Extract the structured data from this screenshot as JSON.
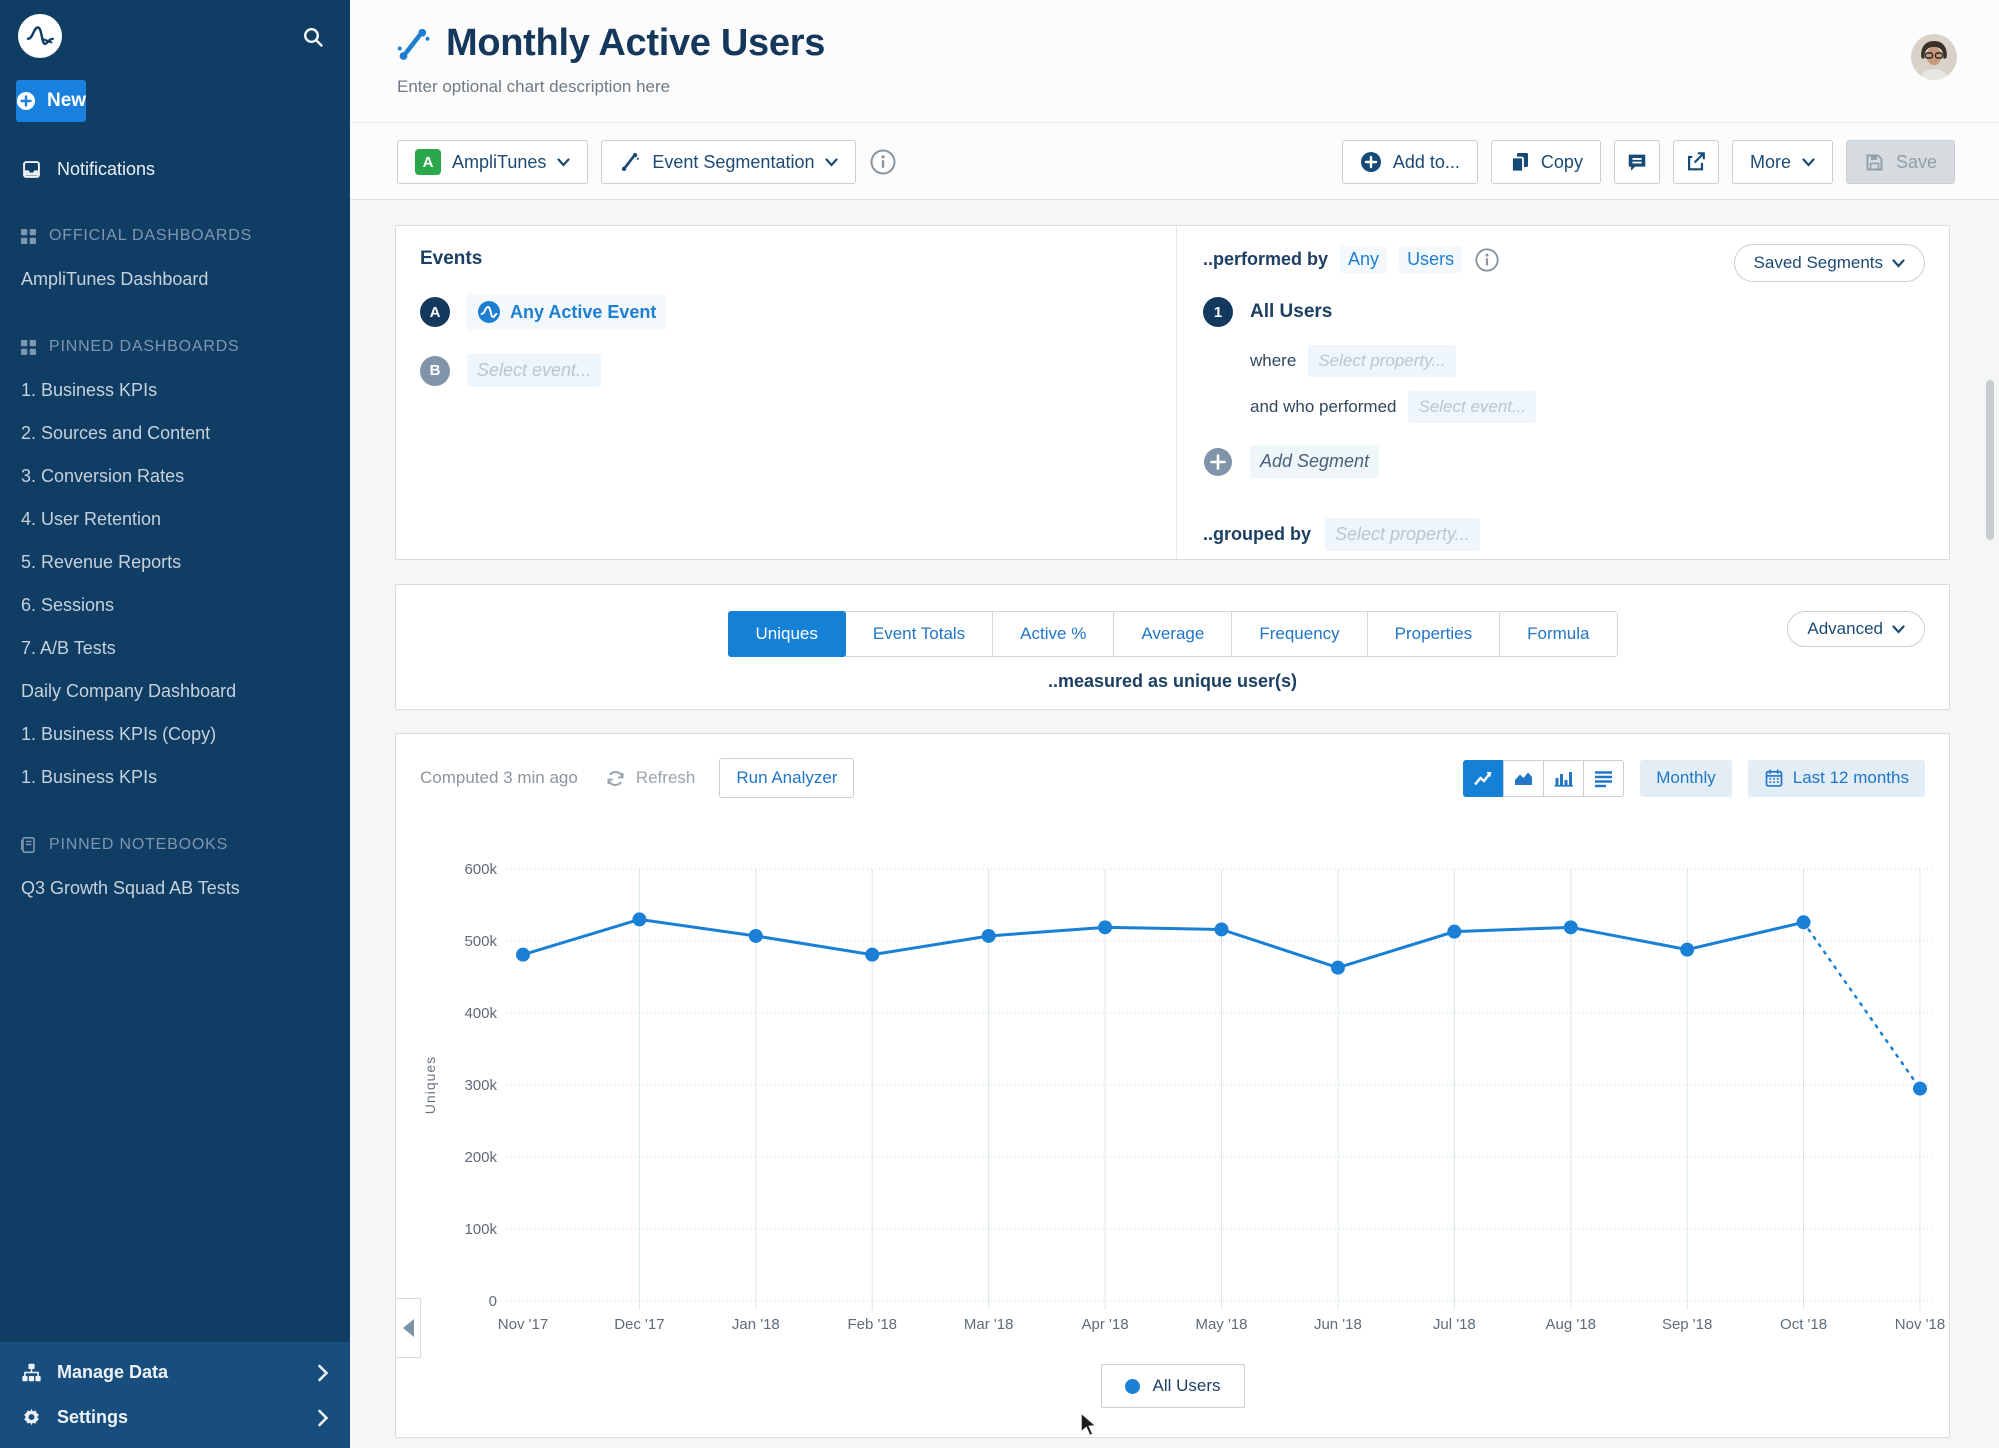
{
  "colors": {
    "sidebar_bg": "#0f3d63",
    "sidebar_footer_bg": "#174e7d",
    "accent_blue": "#1581d6",
    "link_blue": "#1e7fd0",
    "navy_text": "#1d3f63",
    "project_badge_green": "#2aa74a",
    "line_color": "#1a80d6"
  },
  "sidebar": {
    "new_label": "New",
    "notifications": "Notifications",
    "sections": [
      {
        "icon": "dashboard-grid-icon",
        "title": "OFFICIAL DASHBOARDS",
        "items": [
          "AmpliTunes Dashboard"
        ]
      },
      {
        "icon": "dashboard-grid-icon",
        "title": "PINNED DASHBOARDS",
        "items": [
          "1. Business KPIs",
          "2. Sources and Content",
          "3. Conversion Rates",
          "4. User Retention",
          "5. Revenue Reports",
          "6. Sessions",
          "7. A/B Tests",
          "Daily Company Dashboard",
          "1. Business KPIs (Copy)",
          "1. Business KPIs"
        ]
      },
      {
        "icon": "notebook-icon",
        "title": "PINNED NOTEBOOKS",
        "items": [
          "Q3 Growth Squad AB Tests"
        ]
      }
    ],
    "footer": [
      {
        "icon": "sitemap-icon",
        "label": "Manage Data"
      },
      {
        "icon": "gear-icon",
        "label": "Settings"
      }
    ]
  },
  "header": {
    "title": "Monthly Active Users",
    "description_placeholder": "Enter optional chart description here"
  },
  "toolbar": {
    "project": {
      "badge": "A",
      "label": "AmpliTunes"
    },
    "chart_type": "Event Segmentation",
    "add_to": "Add to...",
    "copy": "Copy",
    "more": "More",
    "save": "Save"
  },
  "events_panel": {
    "title": "Events",
    "rows": [
      {
        "badge": "A",
        "label": "Any Active Event"
      },
      {
        "badge": "B",
        "placeholder": "Select event..."
      }
    ]
  },
  "segment_panel": {
    "performed_by": "..performed by",
    "any": "Any",
    "users": "Users",
    "saved_segments": "Saved Segments",
    "segment_number": "1",
    "all_users": "All Users",
    "where": "where",
    "where_placeholder": "Select property...",
    "who_performed": "and who performed",
    "who_placeholder": "Select event...",
    "add_segment": "Add Segment",
    "grouped_by": "..grouped by",
    "grouped_placeholder": "Select property..."
  },
  "measure_panel": {
    "tabs": [
      "Uniques",
      "Event Totals",
      "Active %",
      "Average",
      "Frequency",
      "Properties",
      "Formula"
    ],
    "active_tab": "Uniques",
    "measured_as": "..measured as unique user(s)",
    "advanced": "Advanced"
  },
  "chart_panel": {
    "computed": "Computed 3 min ago",
    "refresh": "Refresh",
    "run_analyzer": "Run Analyzer",
    "interval": "Monthly",
    "range": "Last 12 months"
  },
  "chart_data": {
    "type": "line",
    "title": "Monthly Active Users",
    "ylabel": "Uniques",
    "x": [
      "Nov '17",
      "Dec '17",
      "Jan '18",
      "Feb '18",
      "Mar '18",
      "Apr '18",
      "May '18",
      "Jun '18",
      "Jul '18",
      "Aug '18",
      "Sep '18",
      "Oct '18",
      "Nov '18"
    ],
    "series": [
      {
        "name": "All Users",
        "values": [
          481000,
          530000,
          507000,
          481000,
          507000,
          519000,
          516000,
          463000,
          513000,
          519000,
          488000,
          526000,
          295000
        ]
      }
    ],
    "ylim": [
      0,
      600000
    ],
    "yticks": [
      "600k",
      "500k",
      "400k",
      "300k",
      "200k",
      "100k",
      "0"
    ],
    "grid": true,
    "last_segment_dotted": true,
    "legend_position": "bottom",
    "legend": [
      "All Users"
    ]
  }
}
